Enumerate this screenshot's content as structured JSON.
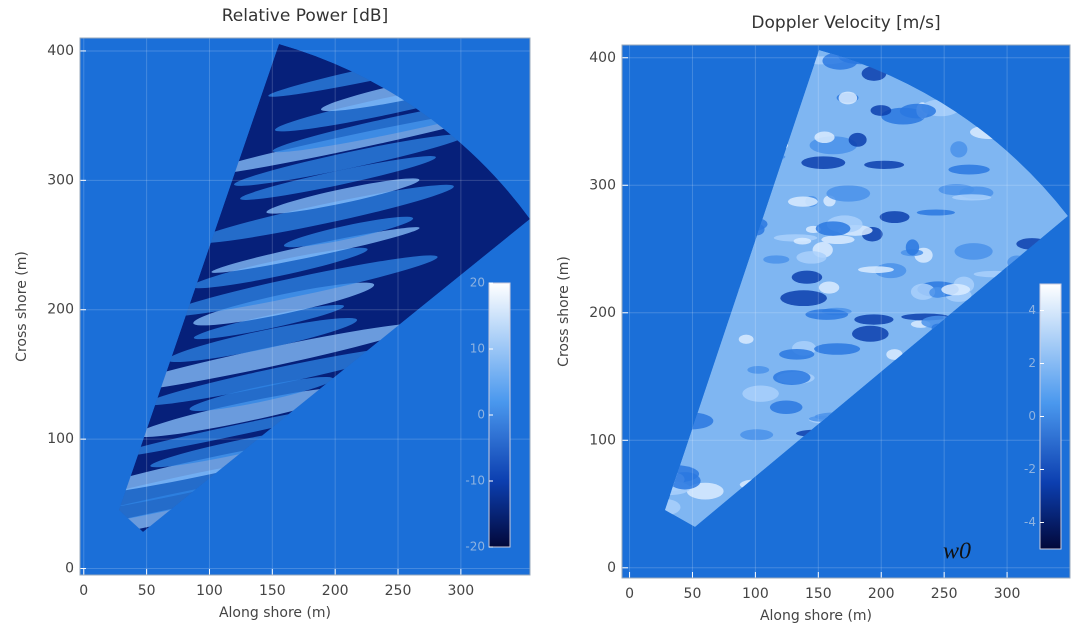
{
  "chart_data": [
    {
      "type": "heatmap",
      "title": "Relative Power [dB]",
      "x_label": "Along shore (m)",
      "y_label": "Cross shore (m)",
      "xlim": [
        -3,
        355
      ],
      "ylim": [
        -5,
        410
      ],
      "xticks": [
        0,
        50,
        100,
        150,
        200,
        250,
        300
      ],
      "yticks": [
        0,
        100,
        200,
        300,
        400
      ],
      "grid": true,
      "background": "#1b6fd8",
      "colorbar": {
        "clim": [
          -20,
          20
        ],
        "ticks": [
          20,
          10,
          0,
          -10,
          -20
        ]
      }
    },
    {
      "type": "heatmap",
      "title": "Doppler Velocity [m/s]",
      "x_label": "Along shore (m)",
      "y_label": "Cross shore (m)",
      "xlim": [
        -6,
        350
      ],
      "ylim": [
        -8,
        410
      ],
      "xticks": [
        0,
        50,
        100,
        150,
        200,
        250,
        300
      ],
      "yticks": [
        0,
        100,
        200,
        300,
        400
      ],
      "grid": true,
      "background": "#1b6fd8",
      "colorbar": {
        "clim": [
          -5,
          5
        ],
        "ticks": [
          4,
          2,
          0,
          -2,
          -4
        ]
      },
      "annotation": "w0"
    }
  ]
}
